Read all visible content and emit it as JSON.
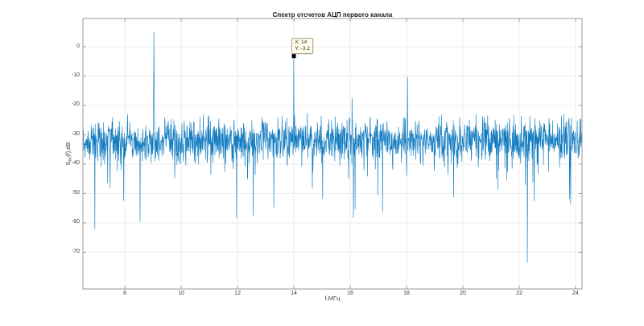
{
  "chart_data": {
    "type": "line",
    "title": "Спектр отсчетов АЦП первого канала",
    "xlabel": "f,МГц",
    "ylabel": {
      "base": "S",
      "sub": "вх",
      "rest": "(f),dB"
    },
    "xlim": [
      6.51,
      24.23
    ],
    "ylim": [
      -82.5,
      9.6
    ],
    "x_ticks": [
      8,
      10,
      12,
      14,
      16,
      18,
      20,
      22,
      24
    ],
    "y_ticks": [
      0,
      -10,
      -20,
      -30,
      -40,
      -50,
      -60,
      -70
    ],
    "grid": true,
    "legend": null,
    "line_color": "#0072BD",
    "axis_color": "#9a9a9a",
    "grid_color": "#ececec",
    "noise_floor": {
      "mean_db": -31.5,
      "std_db": 3.5,
      "top_db": -23.5,
      "deep_tail_prob": 0.012,
      "mid_tail_prob": 0.06,
      "points": 1800,
      "seed": 1337
    },
    "peaks": [
      {
        "f_mhz": 9.03,
        "level_db": 4.9,
        "skirt_db": -20,
        "skirt_width_mhz": 0.2
      },
      {
        "f_mhz": 14.0,
        "level_db": -3.2
      },
      {
        "f_mhz": 16.06,
        "level_db": -17.5
      },
      {
        "f_mhz": 18.03,
        "level_db": -10.2
      }
    ],
    "notches": [
      {
        "f_mhz": 6.93,
        "level_db": -62.0
      },
      {
        "f_mhz": 22.29,
        "level_db": -73.5
      }
    ],
    "datatip": {
      "x": 14,
      "y": -3.2,
      "x_label": "X: 14",
      "y_label": "Y: -3.2"
    }
  }
}
